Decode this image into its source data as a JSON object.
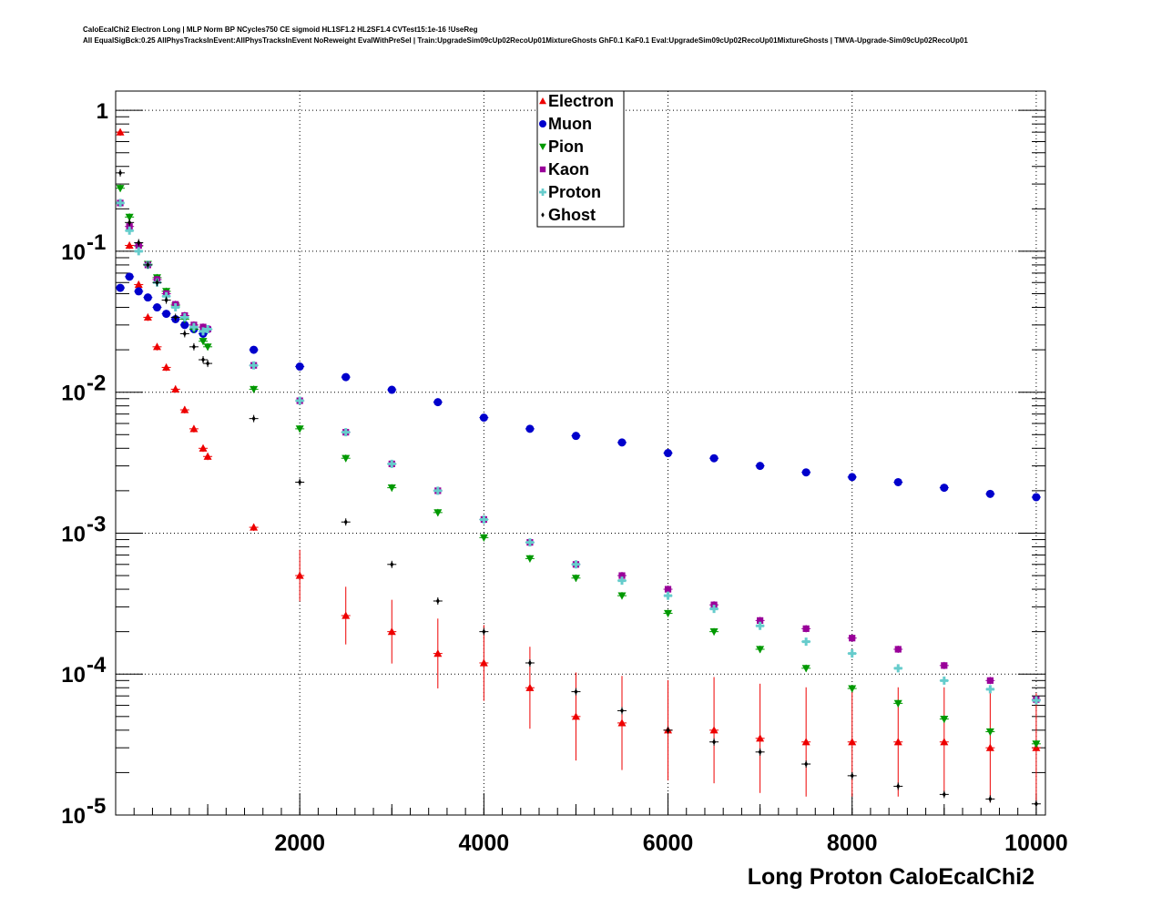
{
  "header": {
    "line1": "CaloEcalChi2 Electron Long | MLP Norm BP NCycles750 CE sigmoid HL1SF1.2 HL2SF1.4 CVTest15:1e-16 !UseReg",
    "line2": "All EqualSigBck:0.25 AllPhysTracksInEvent:AllPhysTracksInEvent NoReweight EvalWithPreSel | Train:UpgradeSim09cUp02RecoUp01MixtureGhosts GhF0.1 KaF0.1 Eval:UpgradeSim09cUp02RecoUp01MixtureGhosts | TMVA-Upgrade-Sim09cUp02RecoUp01"
  },
  "chart_data": {
    "type": "scatter",
    "title": "",
    "xlabel": "Long Proton CaloEcalChi2",
    "ylabel": "",
    "xlim": [
      0,
      10100
    ],
    "ylim": [
      1e-05,
      1.37
    ],
    "yscale": "log",
    "grid": true,
    "legend_position": "top-center",
    "x_ticks": [
      "2000",
      "4000",
      "6000",
      "8000",
      "10000"
    ],
    "y_ticks": [
      {
        "base": "1",
        "exp": ""
      },
      {
        "base": "10",
        "exp": "-1"
      },
      {
        "base": "10",
        "exp": "-2"
      },
      {
        "base": "10",
        "exp": "-3"
      },
      {
        "base": "10",
        "exp": "-4"
      },
      {
        "base": "10",
        "exp": "-5"
      }
    ],
    "x": [
      50,
      150,
      250,
      350,
      450,
      550,
      650,
      750,
      850,
      950,
      1000,
      1500,
      2000,
      2500,
      3000,
      3500,
      4000,
      4500,
      5000,
      5500,
      6000,
      6500,
      7000,
      7500,
      8000,
      8500,
      9000,
      9500,
      10000
    ],
    "series": [
      {
        "name": "Electron",
        "marker": "triangle-up",
        "color": "#ee0000",
        "values": [
          0.7,
          0.11,
          0.058,
          0.034,
          0.021,
          0.015,
          0.0105,
          0.0075,
          0.0055,
          0.004,
          0.0035,
          0.0011,
          0.0005,
          0.00026,
          0.0002,
          0.00014,
          0.00012,
          8e-05,
          5e-05,
          4.5e-05,
          4e-05,
          4e-05,
          3.5e-05,
          3.3e-05,
          3.3e-05,
          3.3e-05,
          3.3e-05,
          3e-05,
          3e-05
        ]
      },
      {
        "name": "Muon",
        "marker": "circle",
        "color": "#0000cc",
        "values": [
          0.055,
          0.066,
          0.052,
          0.047,
          0.04,
          0.036,
          0.033,
          0.03,
          0.028,
          0.026,
          0.028,
          0.02,
          0.0152,
          0.0128,
          0.0104,
          0.0085,
          0.0066,
          0.0055,
          0.0049,
          0.0044,
          0.0037,
          0.0034,
          0.003,
          0.0027,
          0.0025,
          0.0023,
          0.0021,
          0.0019,
          0.0018
        ]
      },
      {
        "name": "Pion",
        "marker": "triangle-down",
        "color": "#009900",
        "values": [
          0.28,
          0.175,
          0.109,
          0.081,
          0.065,
          0.052,
          0.041,
          0.033,
          0.028,
          0.023,
          0.021,
          0.0105,
          0.0055,
          0.0034,
          0.0021,
          0.0014,
          0.00093,
          0.00066,
          0.00048,
          0.00036,
          0.00027,
          0.0002,
          0.00015,
          0.00011,
          7.9e-05,
          6.2e-05,
          4.8e-05,
          3.9e-05,
          3.2e-05
        ]
      },
      {
        "name": "Kaon",
        "marker": "square",
        "color": "#990099",
        "values": [
          0.22,
          0.15,
          0.11,
          0.08,
          0.063,
          0.05,
          0.042,
          0.035,
          0.03,
          0.029,
          0.028,
          0.0155,
          0.0087,
          0.0052,
          0.0031,
          0.002,
          0.00125,
          0.00086,
          0.0006,
          0.0005,
          0.0004,
          0.00031,
          0.00024,
          0.00021,
          0.00018,
          0.00015,
          0.000115,
          9e-05,
          6.6e-05
        ]
      },
      {
        "name": "Proton",
        "marker": "cross",
        "color": "#66cccc",
        "values": [
          0.22,
          0.14,
          0.1,
          0.08,
          0.06,
          0.048,
          0.04,
          0.034,
          0.029,
          0.027,
          0.028,
          0.0155,
          0.0087,
          0.0052,
          0.0031,
          0.002,
          0.00125,
          0.00086,
          0.0006,
          0.00046,
          0.00036,
          0.00029,
          0.00022,
          0.00017,
          0.00014,
          0.00011,
          9e-05,
          7.8e-05,
          6.5e-05
        ]
      },
      {
        "name": "Ghost",
        "marker": "diamond",
        "color": "#000000",
        "values": [
          0.36,
          0.16,
          0.115,
          0.08,
          0.06,
          0.045,
          0.034,
          0.026,
          0.021,
          0.017,
          0.016,
          0.0065,
          0.0023,
          0.0012,
          0.0006,
          0.00033,
          0.0002,
          0.00012,
          7.5e-05,
          5.5e-05,
          4e-05,
          3.3e-05,
          2.8e-05,
          2.3e-05,
          1.9e-05,
          1.6e-05,
          1.4e-05,
          1.3e-05,
          1.2e-05
        ]
      }
    ]
  }
}
